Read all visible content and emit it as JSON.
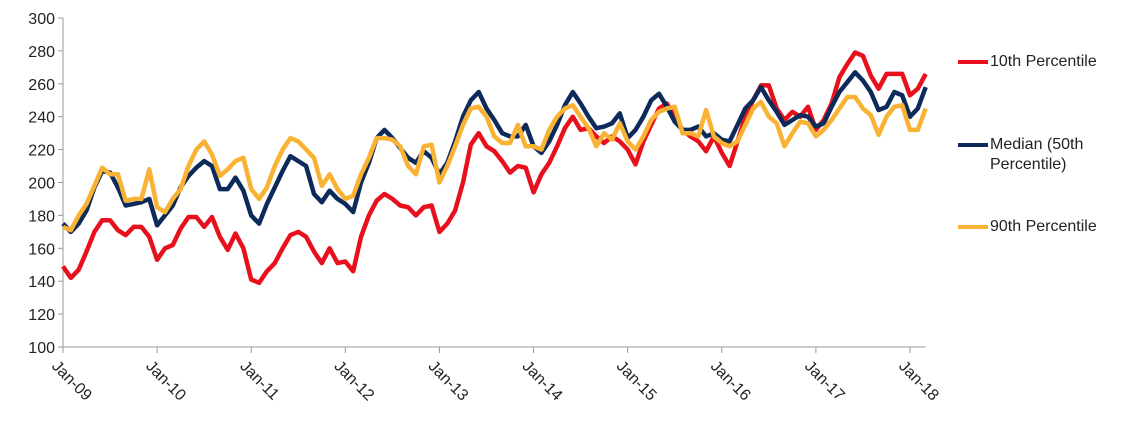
{
  "chart_data": {
    "type": "line",
    "categories": [
      "Jan-09",
      null,
      null,
      null,
      null,
      null,
      null,
      null,
      null,
      null,
      null,
      null,
      "Jan-10",
      null,
      null,
      null,
      null,
      null,
      null,
      null,
      null,
      null,
      null,
      null,
      "Jan-11",
      null,
      null,
      null,
      null,
      null,
      null,
      null,
      null,
      null,
      null,
      null,
      "Jan-12",
      null,
      null,
      null,
      null,
      null,
      null,
      null,
      null,
      null,
      null,
      null,
      "Jan-13",
      null,
      null,
      null,
      null,
      null,
      null,
      null,
      null,
      null,
      null,
      null,
      "Jan-14",
      null,
      null,
      null,
      null,
      null,
      null,
      null,
      null,
      null,
      null,
      null,
      "Jan-15",
      null,
      null,
      null,
      null,
      null,
      null,
      null,
      null,
      null,
      null,
      null,
      "Jan-16",
      null,
      null,
      null,
      null,
      null,
      null,
      null,
      null,
      null,
      null,
      null,
      "Jan-17",
      null,
      null,
      null,
      null,
      null,
      null,
      null,
      null,
      null,
      null,
      null,
      "Jan-18",
      null,
      null
    ],
    "series": [
      {
        "name": "10th Percentile",
        "color": "#e8101c",
        "values": [
          149,
          142,
          147,
          158,
          170,
          177,
          177,
          171,
          168,
          173,
          173,
          167,
          153,
          160,
          162,
          172,
          179,
          179,
          173,
          179,
          167,
          159,
          169,
          160,
          141,
          139,
          146,
          151,
          160,
          168,
          170,
          167,
          158,
          151,
          160,
          151,
          152,
          146,
          167,
          180,
          189,
          193,
          190,
          186,
          185,
          180,
          185,
          186,
          170,
          175,
          183,
          200,
          223,
          230,
          222,
          219,
          213,
          206,
          210,
          209,
          194,
          205,
          212,
          222,
          233,
          240,
          232,
          233,
          228,
          224,
          228,
          225,
          220,
          211,
          225,
          235,
          245,
          248,
          240,
          232,
          228,
          225,
          219,
          228,
          218,
          210,
          225,
          240,
          250,
          259,
          259,
          245,
          238,
          243,
          240,
          246,
          232,
          238,
          248,
          264,
          272,
          279,
          277,
          265,
          257,
          266,
          266,
          266,
          253,
          257,
          266
        ]
      },
      {
        "name": "Median (50th Percentile)",
        "color": "#0c2a5a",
        "values": [
          175,
          170,
          175,
          183,
          197,
          207,
          206,
          197,
          186,
          187,
          188,
          190,
          174,
          180,
          186,
          197,
          204,
          209,
          213,
          210,
          196,
          196,
          203,
          195,
          180,
          175,
          187,
          197,
          207,
          216,
          213,
          210,
          193,
          188,
          195,
          190,
          187,
          182,
          200,
          212,
          227,
          232,
          227,
          221,
          215,
          212,
          219,
          215,
          205,
          212,
          225,
          240,
          250,
          255,
          245,
          238,
          230,
          228,
          228,
          235,
          222,
          218,
          225,
          235,
          247,
          255,
          248,
          240,
          233,
          234,
          236,
          242,
          227,
          232,
          240,
          250,
          254,
          246,
          237,
          232,
          232,
          234,
          228,
          230,
          226,
          225,
          235,
          245,
          250,
          258,
          250,
          243,
          235,
          238,
          241,
          240,
          234,
          236,
          246,
          255,
          261,
          267,
          262,
          255,
          244,
          246,
          255,
          253,
          240,
          245,
          258
        ]
      },
      {
        "name": "90th Percentile",
        "color": "#f9b233",
        "values": [
          173,
          171,
          180,
          187,
          198,
          209,
          205,
          205,
          189,
          190,
          190,
          208,
          185,
          182,
          190,
          196,
          210,
          220,
          225,
          217,
          204,
          208,
          213,
          215,
          196,
          190,
          197,
          210,
          220,
          227,
          225,
          220,
          215,
          198,
          205,
          196,
          190,
          192,
          205,
          215,
          227,
          227,
          226,
          222,
          210,
          205,
          222,
          223,
          200,
          210,
          222,
          235,
          245,
          246,
          240,
          228,
          224,
          224,
          235,
          222,
          222,
          220,
          232,
          240,
          245,
          247,
          240,
          233,
          222,
          230,
          226,
          236,
          225,
          220,
          228,
          238,
          243,
          245,
          246,
          230,
          230,
          228,
          244,
          228,
          224,
          222,
          225,
          235,
          245,
          249,
          240,
          236,
          222,
          230,
          237,
          236,
          228,
          232,
          238,
          245,
          252,
          252,
          245,
          241,
          229,
          240,
          246,
          247,
          232,
          232,
          245
        ]
      }
    ],
    "ylim": [
      100,
      300
    ],
    "yticks": [
      100,
      120,
      140,
      160,
      180,
      200,
      220,
      240,
      260,
      280,
      300
    ],
    "grid": false,
    "legend": "right"
  }
}
